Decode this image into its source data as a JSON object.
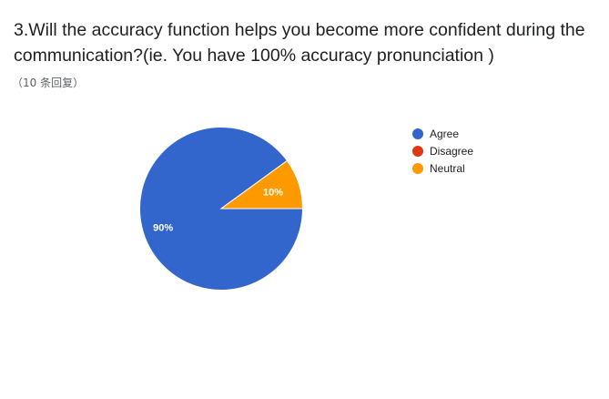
{
  "question": {
    "title": "3.Will the accuracy function helps you become more confident during the communication?(ie. You have 100% accuracy pronunciation )",
    "response_count": "（10 条回复）"
  },
  "chart_data": {
    "type": "pie",
    "title": "",
    "legend_position": "right",
    "slices": [
      {
        "name": "Agree",
        "value": 90,
        "label": "90%",
        "color": "#3366cc"
      },
      {
        "name": "Disagree",
        "value": 0,
        "label": "",
        "color": "#dc3912"
      },
      {
        "name": "Neutral",
        "value": 10,
        "label": "10%",
        "color": "#ff9900"
      }
    ]
  }
}
